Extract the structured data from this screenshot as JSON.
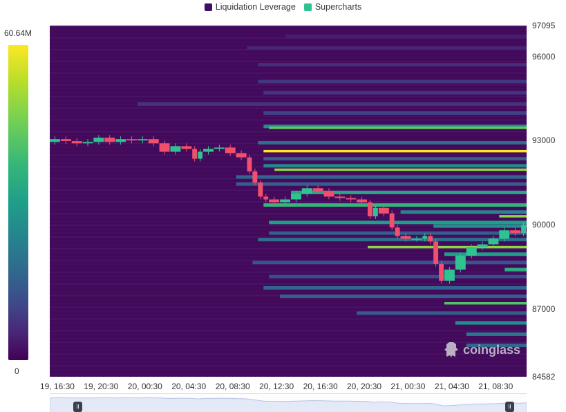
{
  "legend": [
    {
      "label": "Liquidation Leverage",
      "color": "#3f0e6b"
    },
    {
      "label": "Supercharts",
      "color": "#2fc48f"
    }
  ],
  "colorbar": {
    "max_label": "60.64M",
    "min_label": "0"
  },
  "watermark": {
    "text": "coinglass"
  },
  "chart_data": {
    "type": "heatmap",
    "title": "",
    "xlabel": "",
    "ylabel": "",
    "x_ticks": [
      "19, 16:30",
      "19, 20:30",
      "20, 00:30",
      "20, 04:30",
      "20, 08:30",
      "20, 12:30",
      "20, 16:30",
      "20, 20:30",
      "21, 00:30",
      "21, 04:30",
      "21, 08:30"
    ],
    "x_range_hours": [
      0,
      43.5
    ],
    "x_tick_hours": [
      1,
      5,
      9,
      13,
      17,
      21,
      25,
      29,
      33,
      37,
      41
    ],
    "y_ticks": [
      97095,
      96000,
      93000,
      90000,
      87000,
      84582
    ],
    "ylim": [
      84582,
      97095
    ],
    "colorscale": "viridis",
    "value_range": [
      0,
      60.64
    ],
    "value_unit": "M",
    "levels": [
      {
        "price": 96700,
        "start_h": 21.5,
        "value": 5
      },
      {
        "price": 96300,
        "start_h": 18.0,
        "value": 6
      },
      {
        "price": 95700,
        "start_h": 19.0,
        "value": 8
      },
      {
        "price": 95100,
        "start_h": 19.0,
        "value": 10
      },
      {
        "price": 94700,
        "start_h": 19.5,
        "value": 9
      },
      {
        "price": 94300,
        "start_h": 8.0,
        "value": 9
      },
      {
        "price": 93980,
        "start_h": 19.5,
        "value": 12
      },
      {
        "price": 93500,
        "start_h": 19.5,
        "value": 30
      },
      {
        "price": 93450,
        "start_h": 20.0,
        "value": 46
      },
      {
        "price": 92920,
        "start_h": 19.0,
        "value": 22
      },
      {
        "price": 92620,
        "start_h": 19.5,
        "value": 60.64
      },
      {
        "price": 92350,
        "start_h": 19.5,
        "value": 18
      },
      {
        "price": 92100,
        "start_h": 19.5,
        "value": 28
      },
      {
        "price": 91960,
        "start_h": 20.5,
        "value": 50
      },
      {
        "price": 91700,
        "start_h": 17.0,
        "value": 20
      },
      {
        "price": 91450,
        "start_h": 17.0,
        "value": 18
      },
      {
        "price": 91150,
        "start_h": 22.0,
        "value": 36
      },
      {
        "price": 90700,
        "start_h": 19.5,
        "value": 40
      },
      {
        "price": 90450,
        "start_h": 32.0,
        "value": 28
      },
      {
        "price": 90300,
        "start_h": 41.0,
        "value": 50
      },
      {
        "price": 90080,
        "start_h": 20.0,
        "value": 34
      },
      {
        "price": 89950,
        "start_h": 35.0,
        "value": 30
      },
      {
        "price": 89700,
        "start_h": 20.0,
        "value": 18
      },
      {
        "price": 89470,
        "start_h": 19.0,
        "value": 22
      },
      {
        "price": 89200,
        "start_h": 29.0,
        "value": 50
      },
      {
        "price": 88950,
        "start_h": 36.0,
        "value": 34
      },
      {
        "price": 88650,
        "start_h": 18.5,
        "value": 16
      },
      {
        "price": 88400,
        "start_h": 41.5,
        "value": 38
      },
      {
        "price": 88150,
        "start_h": 20.0,
        "value": 14
      },
      {
        "price": 87750,
        "start_h": 19.5,
        "value": 20
      },
      {
        "price": 87450,
        "start_h": 21.0,
        "value": 18
      },
      {
        "price": 87200,
        "start_h": 36.0,
        "value": 44
      },
      {
        "price": 86850,
        "start_h": 28.0,
        "value": 18
      },
      {
        "price": 86500,
        "start_h": 37.0,
        "value": 30
      },
      {
        "price": 86100,
        "start_h": 38.0,
        "value": 24
      },
      {
        "price": 85700,
        "start_h": 38.0,
        "value": 20
      }
    ],
    "price_series": {
      "name": "",
      "hours": [
        0,
        1,
        2,
        3,
        4,
        5,
        6,
        7,
        8,
        9,
        10,
        11,
        12,
        13,
        13.5,
        14,
        15,
        16,
        17,
        18,
        18.5,
        19,
        19.5,
        20,
        21,
        22,
        23,
        24,
        25,
        26,
        27,
        28,
        29,
        29.5,
        30,
        31,
        31.5,
        32,
        33,
        34,
        34.5,
        35,
        35.5,
        36,
        37,
        38,
        39,
        40,
        41,
        42,
        43,
        43.5
      ],
      "close": [
        92950,
        93050,
        92980,
        92900,
        92950,
        93100,
        92950,
        93050,
        93000,
        93050,
        92900,
        92600,
        92800,
        92700,
        92350,
        92600,
        92700,
        92750,
        92550,
        92400,
        91900,
        91500,
        91000,
        90900,
        90800,
        90900,
        91100,
        91300,
        91200,
        91000,
        90950,
        90900,
        90800,
        90300,
        90600,
        90400,
        89900,
        89600,
        89500,
        89500,
        89600,
        89400,
        88600,
        88000,
        88400,
        88900,
        89200,
        89300,
        89500,
        89800,
        89700,
        90000
      ]
    }
  }
}
